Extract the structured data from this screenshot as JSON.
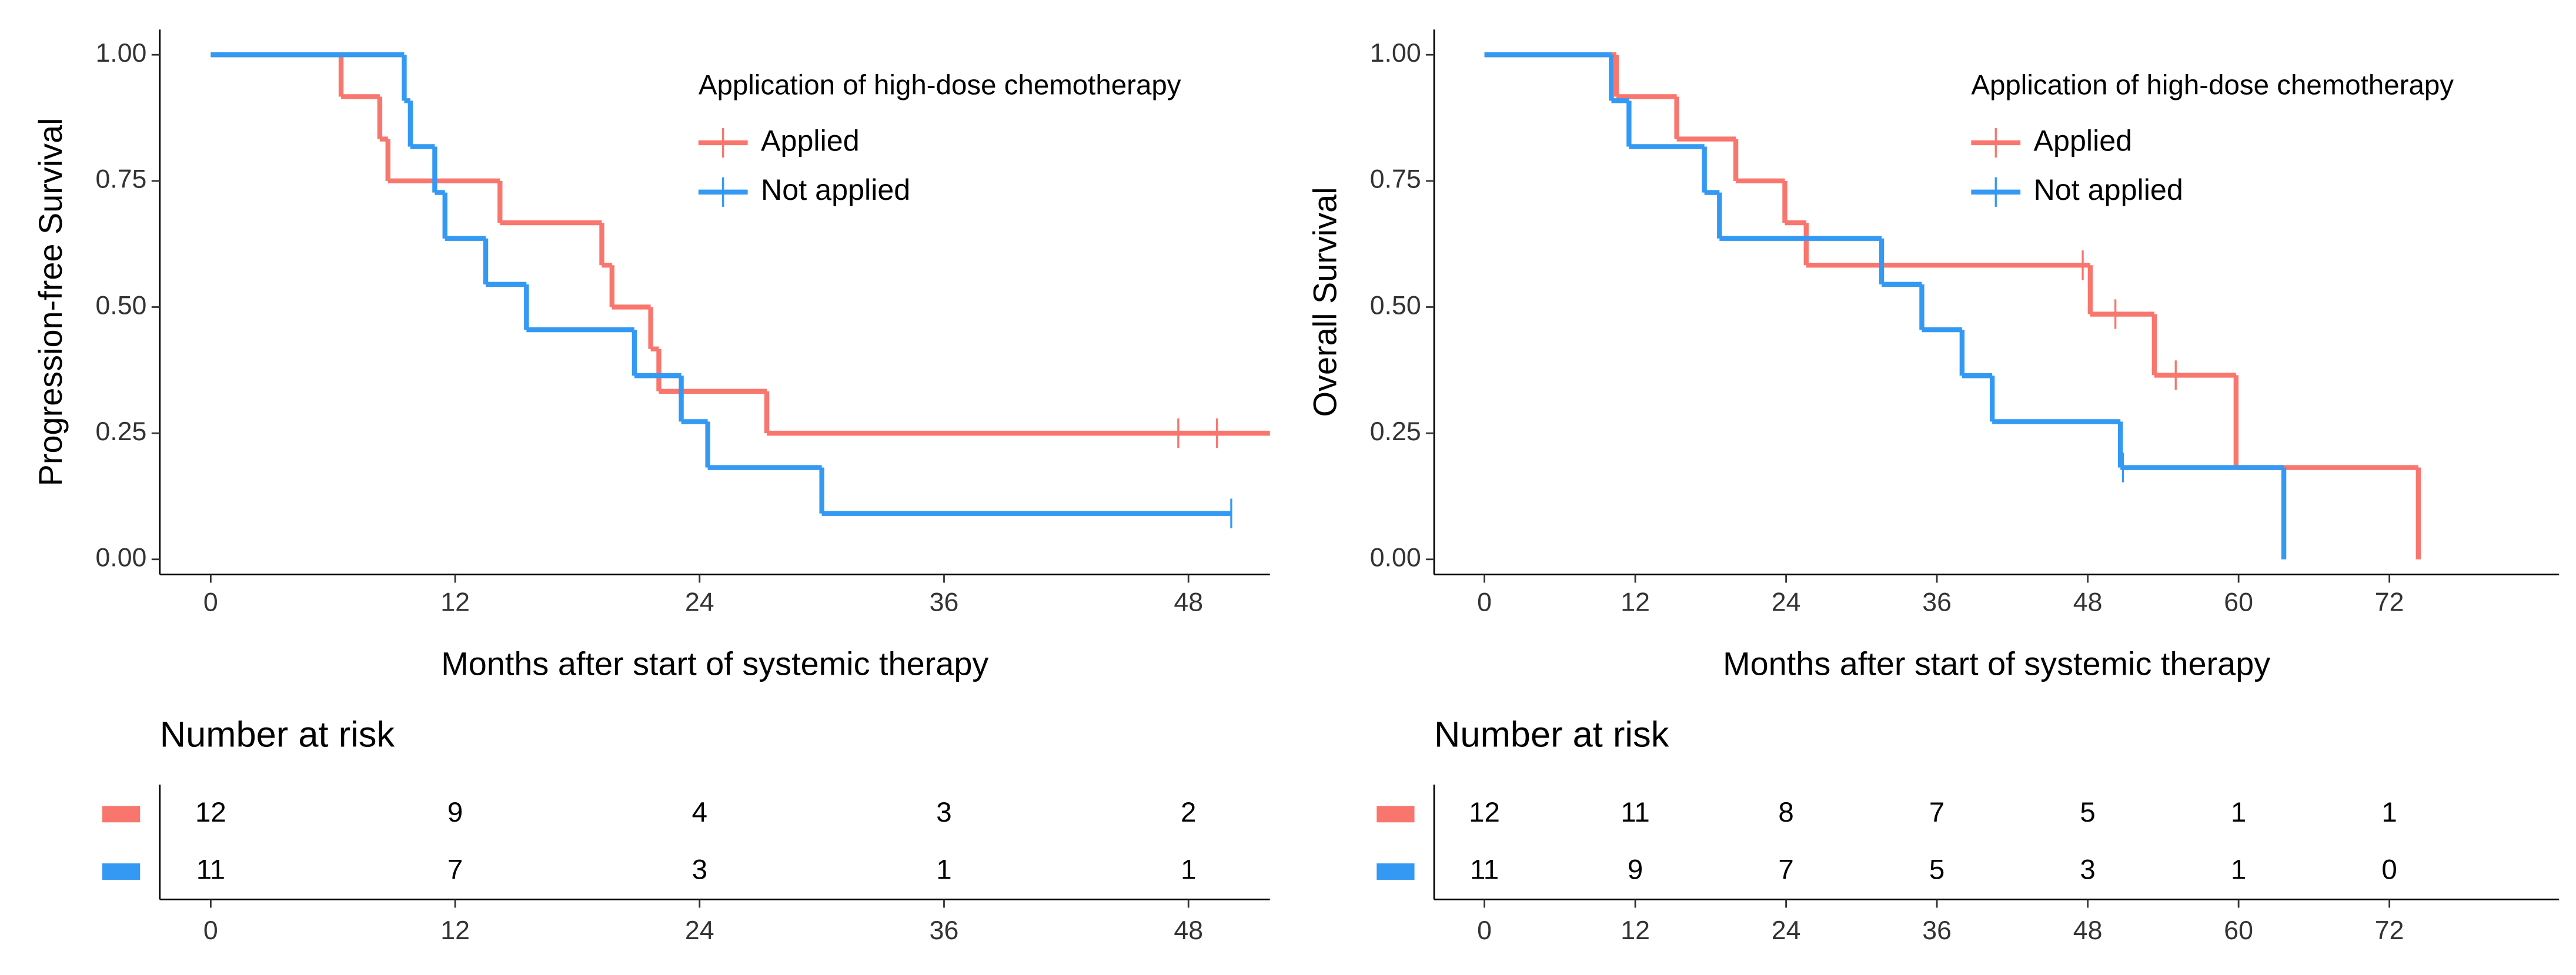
{
  "chart_data": [
    {
      "type": "step",
      "y_label": "Progression-free Survival",
      "x_label": "Months after start of systemic therapy",
      "legend_title": "Application of high-dose chemotherapy",
      "xlim": [
        -2.5,
        52
      ],
      "ylim": [
        -0.03,
        1.05
      ],
      "xticks": [
        0,
        12,
        24,
        36,
        48
      ],
      "yticks": [
        {
          "value": 0,
          "label": "0.00"
        },
        {
          "value": 0.25,
          "label": "0.25"
        },
        {
          "value": 0.5,
          "label": "0.50"
        },
        {
          "value": 0.75,
          "label": "0.75"
        },
        {
          "value": 1,
          "label": "1.00"
        }
      ],
      "series": [
        {
          "name": "Applied",
          "color": "#F8766D",
          "x": [
            0,
            6.4,
            8.3,
            8.7,
            14.2,
            19.2,
            19.7,
            21.6,
            22,
            27.3,
            52
          ],
          "values": [
            1,
            0.917,
            0.833,
            0.75,
            0.667,
            0.583,
            0.5,
            0.417,
            0.333,
            0.25,
            0.25
          ],
          "censor_x": [
            47.5,
            49.4
          ],
          "censor_values": [
            0.25,
            0.25
          ]
        },
        {
          "name": "Not applied",
          "color": "#3399F3",
          "x": [
            0,
            9.5,
            9.8,
            11,
            11.5,
            13.5,
            15.5,
            20.8,
            23.1,
            24.4,
            30,
            50.1
          ],
          "values": [
            1,
            0.909,
            0.818,
            0.727,
            0.636,
            0.545,
            0.455,
            0.364,
            0.273,
            0.182,
            0.091,
            0.091
          ],
          "censor_x": [
            50.1
          ],
          "censor_values": [
            0.091
          ]
        }
      ],
      "risk_table": {
        "title": "Number at risk",
        "x": [
          0,
          12,
          24,
          36,
          48
        ],
        "rows": [
          [
            12,
            9,
            4,
            3,
            2
          ],
          [
            11,
            7,
            3,
            1,
            1
          ]
        ]
      }
    },
    {
      "type": "step",
      "y_label": "Overall Survival",
      "x_label": "Months after start of systemic therapy",
      "legend_title": "Application of high-dose chemotherapy",
      "xlim": [
        -4,
        85.5
      ],
      "ylim": [
        -0.03,
        1.05
      ],
      "xticks": [
        0,
        12,
        24,
        36,
        48,
        60,
        72
      ],
      "yticks": [
        {
          "value": 0,
          "label": "0.00"
        },
        {
          "value": 0.25,
          "label": "0.25"
        },
        {
          "value": 0.5,
          "label": "0.50"
        },
        {
          "value": 0.75,
          "label": "0.75"
        },
        {
          "value": 1,
          "label": "1.00"
        }
      ],
      "series": [
        {
          "name": "Applied",
          "color": "#F8766D",
          "x": [
            0,
            10.5,
            15.3,
            20,
            23.9,
            25.6,
            48.2,
            53.3,
            59.8,
            74.3
          ],
          "values": [
            1,
            0.917,
            0.833,
            0.75,
            0.667,
            0.583,
            0.486,
            0.365,
            0.182,
            0
          ],
          "censor_x": [
            47.6,
            50.2,
            55
          ],
          "censor_values": [
            0.583,
            0.486,
            0.365
          ]
        },
        {
          "name": "Not applied",
          "color": "#3399F3",
          "x": [
            0,
            10.1,
            11.5,
            17.5,
            18.7,
            31.6,
            34.8,
            38,
            40.4,
            50.6,
            63.6
          ],
          "values": [
            1,
            0.909,
            0.818,
            0.727,
            0.636,
            0.545,
            0.455,
            0.364,
            0.273,
            0.182,
            0
          ],
          "censor_x": [
            50.8
          ],
          "censor_values": [
            0.182
          ]
        }
      ],
      "risk_table": {
        "title": "Number at risk",
        "x": [
          0,
          12,
          24,
          36,
          48,
          60,
          72
        ],
        "rows": [
          [
            12,
            11,
            8,
            7,
            5,
            1,
            1
          ],
          [
            11,
            9,
            7,
            5,
            3,
            1,
            0
          ]
        ]
      }
    }
  ]
}
